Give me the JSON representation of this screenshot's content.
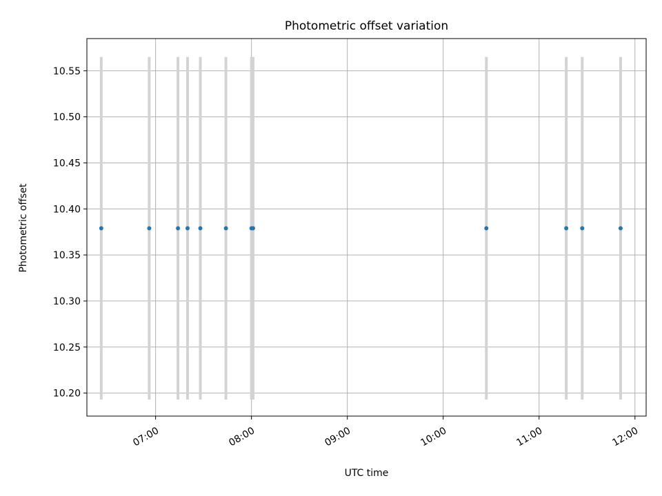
{
  "chart_data": {
    "type": "scatter",
    "title": "Photometric offset variation",
    "xlabel": "UTC time",
    "ylabel": "Photometric offset",
    "x_ticks": [
      "07:00",
      "08:00",
      "09:00",
      "10:00",
      "11:00",
      "12:00"
    ],
    "y_ticks": [
      "10.20",
      "10.25",
      "10.30",
      "10.35",
      "10.40",
      "10.45",
      "10.50",
      "10.55"
    ],
    "xlim": [
      "06:17",
      "12:07"
    ],
    "ylim": [
      10.175,
      10.585
    ],
    "grid": true,
    "points": [
      {
        "x": "06:26",
        "y": 10.379,
        "err_low": 10.193,
        "err_high": 10.565
      },
      {
        "x": "06:56",
        "y": 10.379,
        "err_low": 10.193,
        "err_high": 10.565
      },
      {
        "x": "07:14",
        "y": 10.379,
        "err_low": 10.193,
        "err_high": 10.565
      },
      {
        "x": "07:20",
        "y": 10.379,
        "err_low": 10.193,
        "err_high": 10.565
      },
      {
        "x": "07:28",
        "y": 10.379,
        "err_low": 10.193,
        "err_high": 10.565
      },
      {
        "x": "07:44",
        "y": 10.379,
        "err_low": 10.193,
        "err_high": 10.565
      },
      {
        "x": "08:00",
        "y": 10.379,
        "err_low": 10.193,
        "err_high": 10.565
      },
      {
        "x": "08:01",
        "y": 10.379,
        "err_low": 10.193,
        "err_high": 10.565
      },
      {
        "x": "10:27",
        "y": 10.379,
        "err_low": 10.193,
        "err_high": 10.565
      },
      {
        "x": "11:17",
        "y": 10.379,
        "err_low": 10.193,
        "err_high": 10.565
      },
      {
        "x": "11:27",
        "y": 10.379,
        "err_low": 10.193,
        "err_high": 10.565
      },
      {
        "x": "11:51",
        "y": 10.379,
        "err_low": 10.193,
        "err_high": 10.565
      }
    ],
    "colors": {
      "point": "#1f77b4",
      "errorbar": "#d3d3d3",
      "grid": "#b0b0b0",
      "axes": "#000000"
    }
  }
}
